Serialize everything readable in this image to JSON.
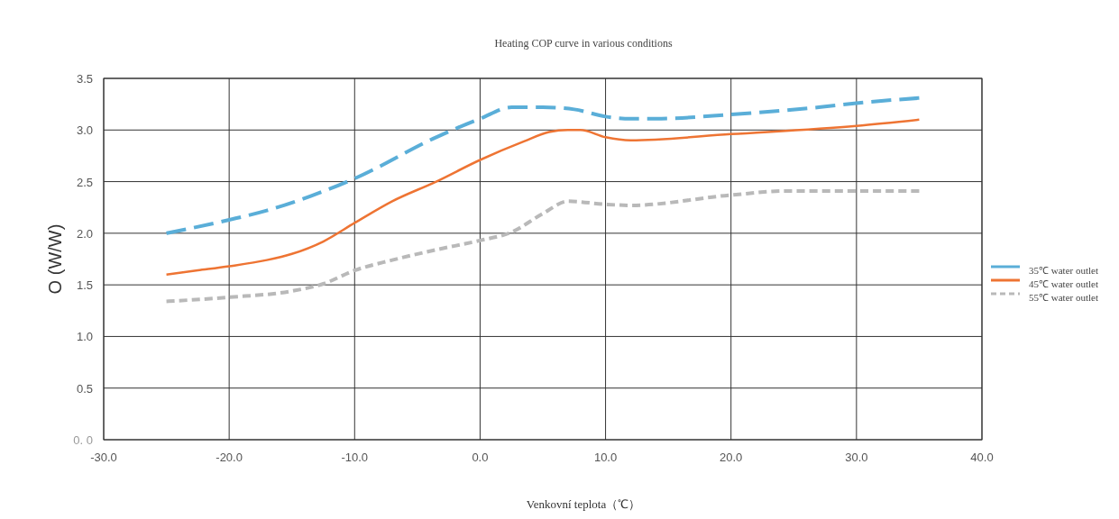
{
  "chart_data": {
    "type": "line",
    "title": "Heating COP curve in various conditions",
    "xlabel": "Venkovní teplota（℃）",
    "ylabel": "O (W/W)",
    "xlim": [
      -30,
      40
    ],
    "xticks": [
      {
        "value": -30,
        "label": "-30.0"
      },
      {
        "value": -20,
        "label": "-20.0"
      },
      {
        "value": -10,
        "label": "-10.0"
      },
      {
        "value": 0,
        "label": "0.0"
      },
      {
        "value": 10,
        "label": "10.0"
      },
      {
        "value": 20,
        "label": "20.0"
      },
      {
        "value": 30,
        "label": "30.0"
      },
      {
        "value": 40,
        "label": "40.0"
      }
    ],
    "ylim": [
      0,
      3.5
    ],
    "yticks": [
      {
        "value": 0,
        "label": "0. 0"
      },
      {
        "value": 0.5,
        "label": "0.5"
      },
      {
        "value": 1,
        "label": "1.0"
      },
      {
        "value": 1.5,
        "label": "1.5"
      },
      {
        "value": 2,
        "label": "2.0"
      },
      {
        "value": 2.5,
        "label": "2.5"
      },
      {
        "value": 3,
        "label": "3.0"
      },
      {
        "value": 3.5,
        "label": "3.5"
      }
    ],
    "grid": true,
    "legend": "right",
    "series": [
      {
        "name": "35℃ water outlet",
        "color": "#5aaed8",
        "line_style": "dashed",
        "x": [
          -25,
          -20,
          -17,
          -13.5,
          -10,
          -3.5,
          0,
          2.5,
          5,
          7.5,
          10,
          12,
          14,
          20,
          27,
          30,
          35
        ],
        "values": [
          2.0,
          2.13,
          2.22,
          2.36,
          2.53,
          2.93,
          3.11,
          3.22,
          3.22,
          3.2,
          3.13,
          3.11,
          3.11,
          3.15,
          3.22,
          3.26,
          3.31
        ]
      },
      {
        "name": "45℃ water outlet",
        "color": "#ee7433",
        "line_style": "solid",
        "x": [
          -25,
          -22.5,
          -20,
          -17,
          -15,
          -12.5,
          -10,
          -7,
          -3.5,
          0,
          3.5,
          5.5,
          7,
          8,
          10,
          12,
          20,
          30,
          35
        ],
        "values": [
          1.6,
          1.64,
          1.68,
          1.74,
          1.8,
          1.92,
          2.1,
          2.31,
          2.5,
          2.71,
          2.89,
          2.98,
          3.0,
          3.0,
          2.93,
          2.9,
          2.96,
          3.04,
          3.1
        ]
      },
      {
        "name": "55℃  water outlet",
        "color": "#b9b9b9",
        "line_style": "dotted",
        "x": [
          -25,
          -20,
          -15,
          -12.5,
          -10,
          -7,
          -3.5,
          0,
          2.5,
          5,
          7,
          10,
          12,
          20,
          24.5,
          35
        ],
        "values": [
          1.34,
          1.38,
          1.44,
          1.51,
          1.64,
          1.74,
          1.84,
          1.93,
          2.01,
          2.19,
          2.31,
          2.28,
          2.27,
          2.37,
          2.41,
          2.41
        ]
      }
    ]
  }
}
